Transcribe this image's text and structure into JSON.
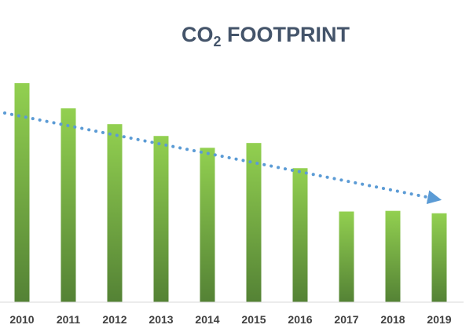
{
  "chart_data": {
    "type": "bar",
    "title": {
      "main": "CO",
      "subscript": "2",
      "rest": " FOOTPRINT"
    },
    "categories": [
      "2010",
      "2011",
      "2012",
      "2013",
      "2014",
      "2015",
      "2016",
      "2017",
      "2018",
      "2019"
    ],
    "values": [
      100,
      88.5,
      81.3,
      75.9,
      70.5,
      72.7,
      61.2,
      41.4,
      41.7,
      40.6
    ],
    "ylim": [
      0,
      100
    ],
    "grid": false,
    "legend": "none",
    "trendline": {
      "style": "dotted",
      "arrow": true,
      "color": "#5b9bd5"
    },
    "colors": {
      "bar_top": "#92d050",
      "bar_bottom": "#548235",
      "axis": "#d9d9d9",
      "tick": "#404040",
      "title": "#44546a"
    }
  }
}
